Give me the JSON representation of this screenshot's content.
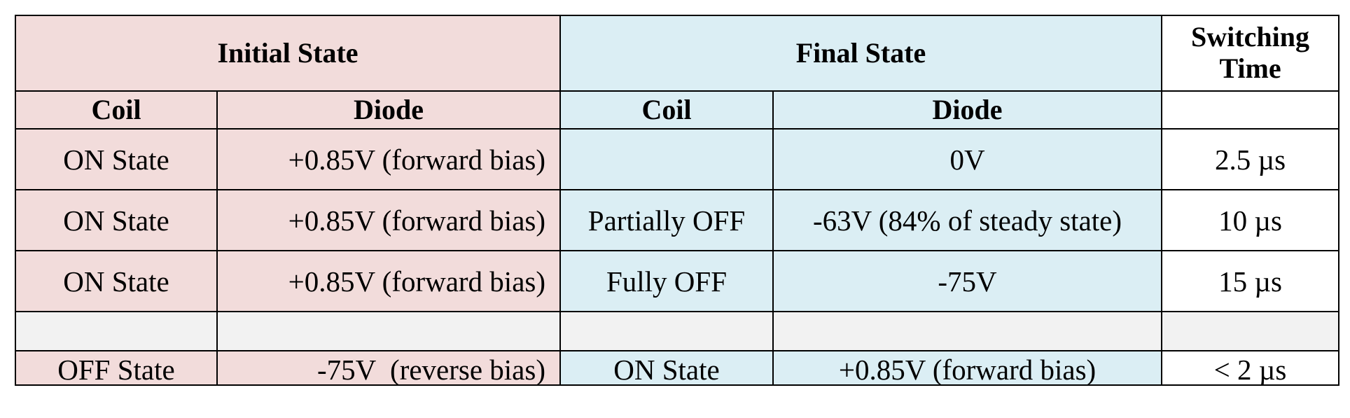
{
  "table": {
    "group_headers": [
      "Initial State",
      "Final State",
      "Switching\nTime"
    ],
    "sub_headers": [
      "Coil",
      "Diode",
      "Coil",
      "Diode"
    ],
    "rows": [
      [
        "ON State",
        "+0.85V (forward bias)",
        null,
        "0V",
        "2.5 µs"
      ],
      [
        "ON State",
        "+0.85V (forward bias)",
        "Partially OFF",
        "-63V (84% of steady state)",
        "10 µs"
      ],
      [
        "ON State",
        "+0.85V (forward bias)",
        "Fully OFF",
        "-75V",
        "15 µs"
      ],
      [
        null,
        null,
        null,
        null,
        null
      ],
      [
        "OFF State",
        "-75V  (reverse bias)",
        "ON State",
        "+0.85V (forward bias)",
        "< 2 µs"
      ]
    ]
  }
}
